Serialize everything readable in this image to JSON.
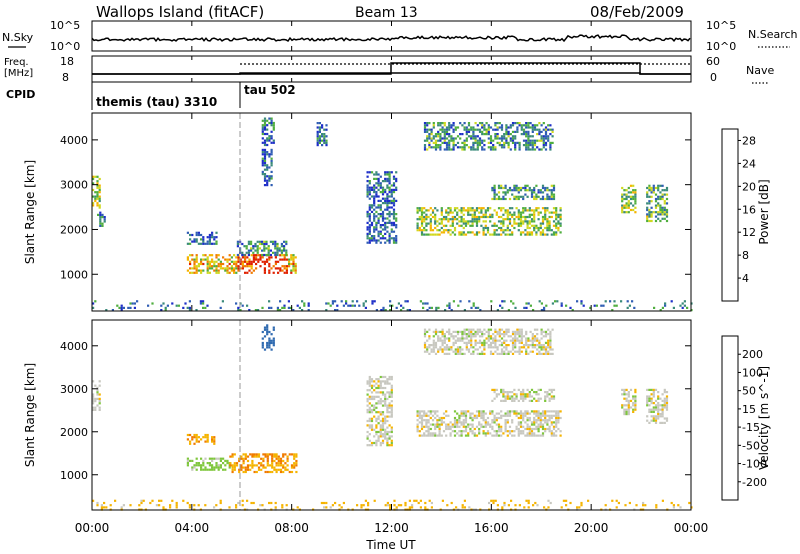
{
  "header": {
    "station": "Wallops Island (fitACF)",
    "beam": "Beam 13",
    "date": "08/Feb/2009"
  },
  "strip_labels": {
    "nsky": "N.Sky",
    "nsky_ticks": [
      "10^5",
      "10^0"
    ],
    "nsearch": "N.Search",
    "nsearch_ticks": [
      "10^5",
      "10^0"
    ],
    "freq": "Freq.",
    "freq_unit": "[MHz]",
    "freq_ticks": [
      "18",
      "8"
    ],
    "nave": "Nave",
    "nave_ticks": [
      "60",
      "0"
    ],
    "cpid": "CPID"
  },
  "cpid_segments": [
    {
      "label": "themis (tau) 3310",
      "start_hour": 0
    },
    {
      "label": "tau 502",
      "start_hour": 6
    }
  ],
  "chart_data": [
    {
      "type": "heatmap",
      "title": "",
      "xlabel": "Time UT",
      "ylabel": "Slant Range [km]",
      "xlim_hours": [
        0,
        24
      ],
      "ylim": [
        180,
        4600
      ],
      "x_tick_labels": [
        "00:00",
        "04:00",
        "08:00",
        "12:00",
        "16:00",
        "20:00",
        "00:00"
      ],
      "y_ticks": [
        1000,
        2000,
        3000,
        4000
      ],
      "colorbar": {
        "label": "Power [dB]",
        "ticks": [
          4,
          8,
          12,
          16,
          20,
          24,
          28
        ],
        "range": [
          0,
          30
        ],
        "colors": [
          "#1d2ec8",
          "#2f5db3",
          "#3a8a7a",
          "#4fae3e",
          "#cfd820",
          "#f5b400",
          "#f07a00",
          "#e02000"
        ]
      },
      "echo_regions": [
        {
          "t0": 0.0,
          "t1": 0.3,
          "r0": 2500,
          "r1": 3200,
          "value": 16
        },
        {
          "t0": 0.2,
          "t1": 0.5,
          "r0": 2100,
          "r1": 2400,
          "value": 6
        },
        {
          "t0": 0.0,
          "t1": 24.0,
          "r0": 180,
          "r1": 420,
          "value": 8
        },
        {
          "t0": 3.8,
          "t1": 5.0,
          "r0": 1700,
          "r1": 1950,
          "value": 6
        },
        {
          "t0": 3.8,
          "t1": 8.2,
          "r0": 1050,
          "r1": 1450,
          "value": 20
        },
        {
          "t0": 5.8,
          "t1": 7.8,
          "r0": 1450,
          "r1": 1750,
          "value": 9
        },
        {
          "t0": 6.8,
          "t1": 7.3,
          "r0": 3900,
          "r1": 4500,
          "value": 7
        },
        {
          "t0": 6.8,
          "t1": 7.2,
          "r0": 3000,
          "r1": 3800,
          "value": 6
        },
        {
          "t0": 9.0,
          "t1": 9.4,
          "r0": 3900,
          "r1": 4400,
          "value": 6
        },
        {
          "t0": 11.0,
          "t1": 12.2,
          "r0": 1700,
          "r1": 3300,
          "value": 6
        },
        {
          "t0": 13.3,
          "t1": 18.5,
          "r0": 3800,
          "r1": 4400,
          "value": 9
        },
        {
          "t0": 13.0,
          "t1": 18.8,
          "r0": 1900,
          "r1": 2500,
          "value": 15
        },
        {
          "t0": 16.0,
          "t1": 18.5,
          "r0": 2700,
          "r1": 3000,
          "value": 10
        },
        {
          "t0": 21.2,
          "t1": 21.8,
          "r0": 2400,
          "r1": 3000,
          "value": 15
        },
        {
          "t0": 22.2,
          "t1": 23.0,
          "r0": 2200,
          "r1": 3000,
          "value": 12
        }
      ]
    },
    {
      "type": "heatmap",
      "title": "",
      "xlabel": "Time UT",
      "ylabel": "Slant Range [km]",
      "xlim_hours": [
        0,
        24
      ],
      "ylim": [
        180,
        4600
      ],
      "x_tick_labels": [
        "00:00",
        "04:00",
        "08:00",
        "12:00",
        "16:00",
        "20:00",
        "00:00"
      ],
      "y_ticks": [
        1000,
        2000,
        3000,
        4000
      ],
      "colorbar": {
        "label": "Velocity [m s^-1]",
        "ticks": [
          200,
          100,
          50,
          15,
          -15,
          -50,
          -100,
          -200
        ],
        "colors": [
          "#1d2ec8",
          "#2f6ab0",
          "#2f8f4f",
          "#7ec63c",
          "#c8c8c0",
          "#f5b400",
          "#f07a00",
          "#e84000",
          "#e01010"
        ]
      },
      "echo_regions": [
        {
          "t0": 0.0,
          "t1": 0.3,
          "r0": 2500,
          "r1": 3200,
          "value": 0
        },
        {
          "t0": 0.0,
          "t1": 24.0,
          "r0": 180,
          "r1": 420,
          "value": -30
        },
        {
          "t0": 3.8,
          "t1": 4.9,
          "r0": 1700,
          "r1": 1950,
          "value": -40
        },
        {
          "t0": 3.8,
          "t1": 5.5,
          "r0": 1100,
          "r1": 1400,
          "value": 30
        },
        {
          "t0": 5.5,
          "t1": 8.2,
          "r0": 1050,
          "r1": 1500,
          "value": -45
        },
        {
          "t0": 6.8,
          "t1": 7.3,
          "r0": 3900,
          "r1": 4500,
          "value": 120
        },
        {
          "t0": 11.0,
          "t1": 12.0,
          "r0": 1700,
          "r1": 3300,
          "value": 0
        },
        {
          "t0": 13.3,
          "t1": 18.5,
          "r0": 3800,
          "r1": 4400,
          "value": 0
        },
        {
          "t0": 13.0,
          "t1": 18.8,
          "r0": 1900,
          "r1": 2500,
          "value": 0
        },
        {
          "t0": 16.0,
          "t1": 18.5,
          "r0": 2700,
          "r1": 3000,
          "value": 0
        },
        {
          "t0": 21.2,
          "t1": 21.8,
          "r0": 2400,
          "r1": 3000,
          "value": 0
        },
        {
          "t0": 22.2,
          "t1": 23.0,
          "r0": 2200,
          "r1": 3000,
          "value": 0
        }
      ]
    }
  ]
}
